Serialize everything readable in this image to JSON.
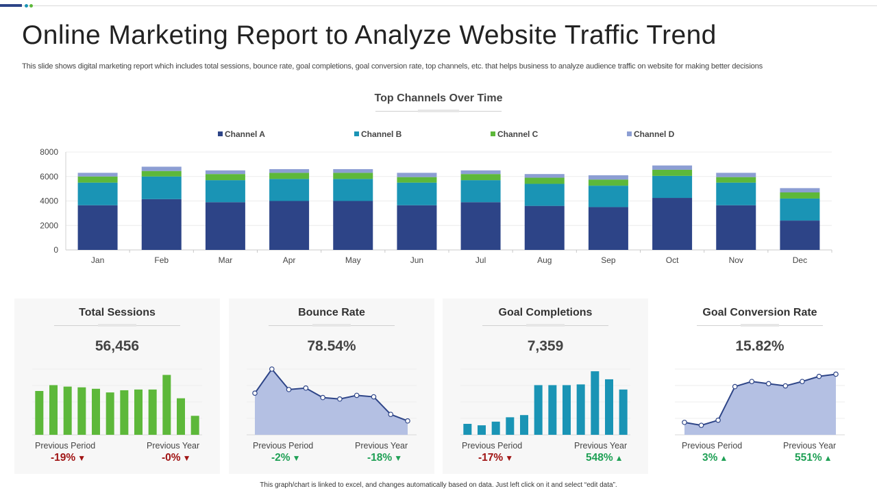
{
  "title": "Online Marketing Report to Analyze Website Traffic Trend",
  "subtitle": "This slide shows digital marketing report which includes total sessions, bounce rate, goal completions, goal conversion rate, top channels, etc. that helps business to analyze audience traffic on website for making better decisions",
  "footer": "This graph/chart is linked to excel, and changes automatically based on data. Just left click on it and select “edit data”.",
  "colors": {
    "channel_a": "#2d4487",
    "channel_b": "#1a94b5",
    "channel_c": "#5db83a",
    "channel_d": "#8c9ed3",
    "sessions_bar": "#5db83a",
    "completions_bar": "#1a94b5",
    "area_fill": "#b4c0e3",
    "area_line": "#2d4487",
    "negative": "#a01414",
    "positive": "#1fa055"
  },
  "chart_data": {
    "type": "bar",
    "stacked": true,
    "title": "Top Channels Over Time",
    "categories": [
      "Jan",
      "Feb",
      "Mar",
      "Apr",
      "May",
      "Jun",
      "Jul",
      "Aug",
      "Sep",
      "Oct",
      "Nov",
      "Dec"
    ],
    "series": [
      {
        "name": "Channel A",
        "values": [
          3650,
          4150,
          3900,
          4000,
          4000,
          3650,
          3900,
          3600,
          3500,
          4250,
          3650,
          2400
        ]
      },
      {
        "name": "Channel B",
        "values": [
          1850,
          1850,
          1800,
          1800,
          1800,
          1850,
          1800,
          1800,
          1750,
          1800,
          1850,
          1800
        ]
      },
      {
        "name": "Channel C",
        "values": [
          500,
          450,
          500,
          500,
          500,
          450,
          500,
          500,
          500,
          500,
          450,
          500
        ]
      },
      {
        "name": "Channel D",
        "values": [
          300,
          350,
          300,
          300,
          300,
          350,
          300,
          300,
          350,
          350,
          350,
          350
        ]
      }
    ],
    "ylim": [
      0,
      8000
    ],
    "yticks": [
      0,
      2000,
      4000,
      6000,
      8000
    ],
    "legend_position": "top"
  },
  "cards": [
    {
      "title": "Total Sessions",
      "value": "56,456",
      "mini_chart": {
        "type": "bar",
        "values": [
          6.0,
          6.8,
          6.6,
          6.5,
          6.3,
          5.8,
          6.1,
          6.2,
          6.2,
          8.2,
          5.0,
          2.6
        ]
      },
      "previous_period_label": "Previous Period",
      "previous_period_value": "-19%",
      "previous_period_arrow": "▼",
      "previous_year_label": "Previous Year",
      "previous_year_value": "-0%",
      "previous_year_arrow": "▼"
    },
    {
      "title": "Bounce Rate",
      "value": "78.54%",
      "mini_chart": {
        "type": "area",
        "values": [
          5.7,
          9.0,
          6.2,
          6.4,
          5.1,
          4.9,
          5.4,
          5.2,
          2.8,
          1.9
        ]
      },
      "previous_period_label": "Previous Period",
      "previous_period_value": "-2%",
      "previous_period_arrow": "▼",
      "previous_year_label": "Previous Year",
      "previous_year_value": "-18%",
      "previous_year_arrow": "▼"
    },
    {
      "title": "Goal Completions",
      "value": "7,359",
      "mini_chart": {
        "type": "bar",
        "values": [
          1.5,
          1.3,
          1.8,
          2.4,
          2.7,
          6.8,
          6.8,
          6.8,
          6.9,
          8.7,
          7.6,
          6.2
        ]
      },
      "previous_period_label": "Previous Period",
      "previous_period_value": "-17%",
      "previous_period_arrow": "▼",
      "previous_year_label": "Previous Year",
      "previous_year_value": "548%",
      "previous_year_arrow": "▲"
    },
    {
      "title": "Goal Conversion Rate",
      "value": "15.82%",
      "mini_chart": {
        "type": "area",
        "values": [
          1.7,
          1.3,
          2.0,
          6.6,
          7.3,
          7.0,
          6.7,
          7.3,
          8.0,
          8.3
        ]
      },
      "previous_period_label": "Previous Period",
      "previous_period_value": "3%",
      "previous_period_arrow": "▲",
      "previous_year_label": "Previous Year",
      "previous_year_value": "551%",
      "previous_year_arrow": "▲"
    }
  ]
}
